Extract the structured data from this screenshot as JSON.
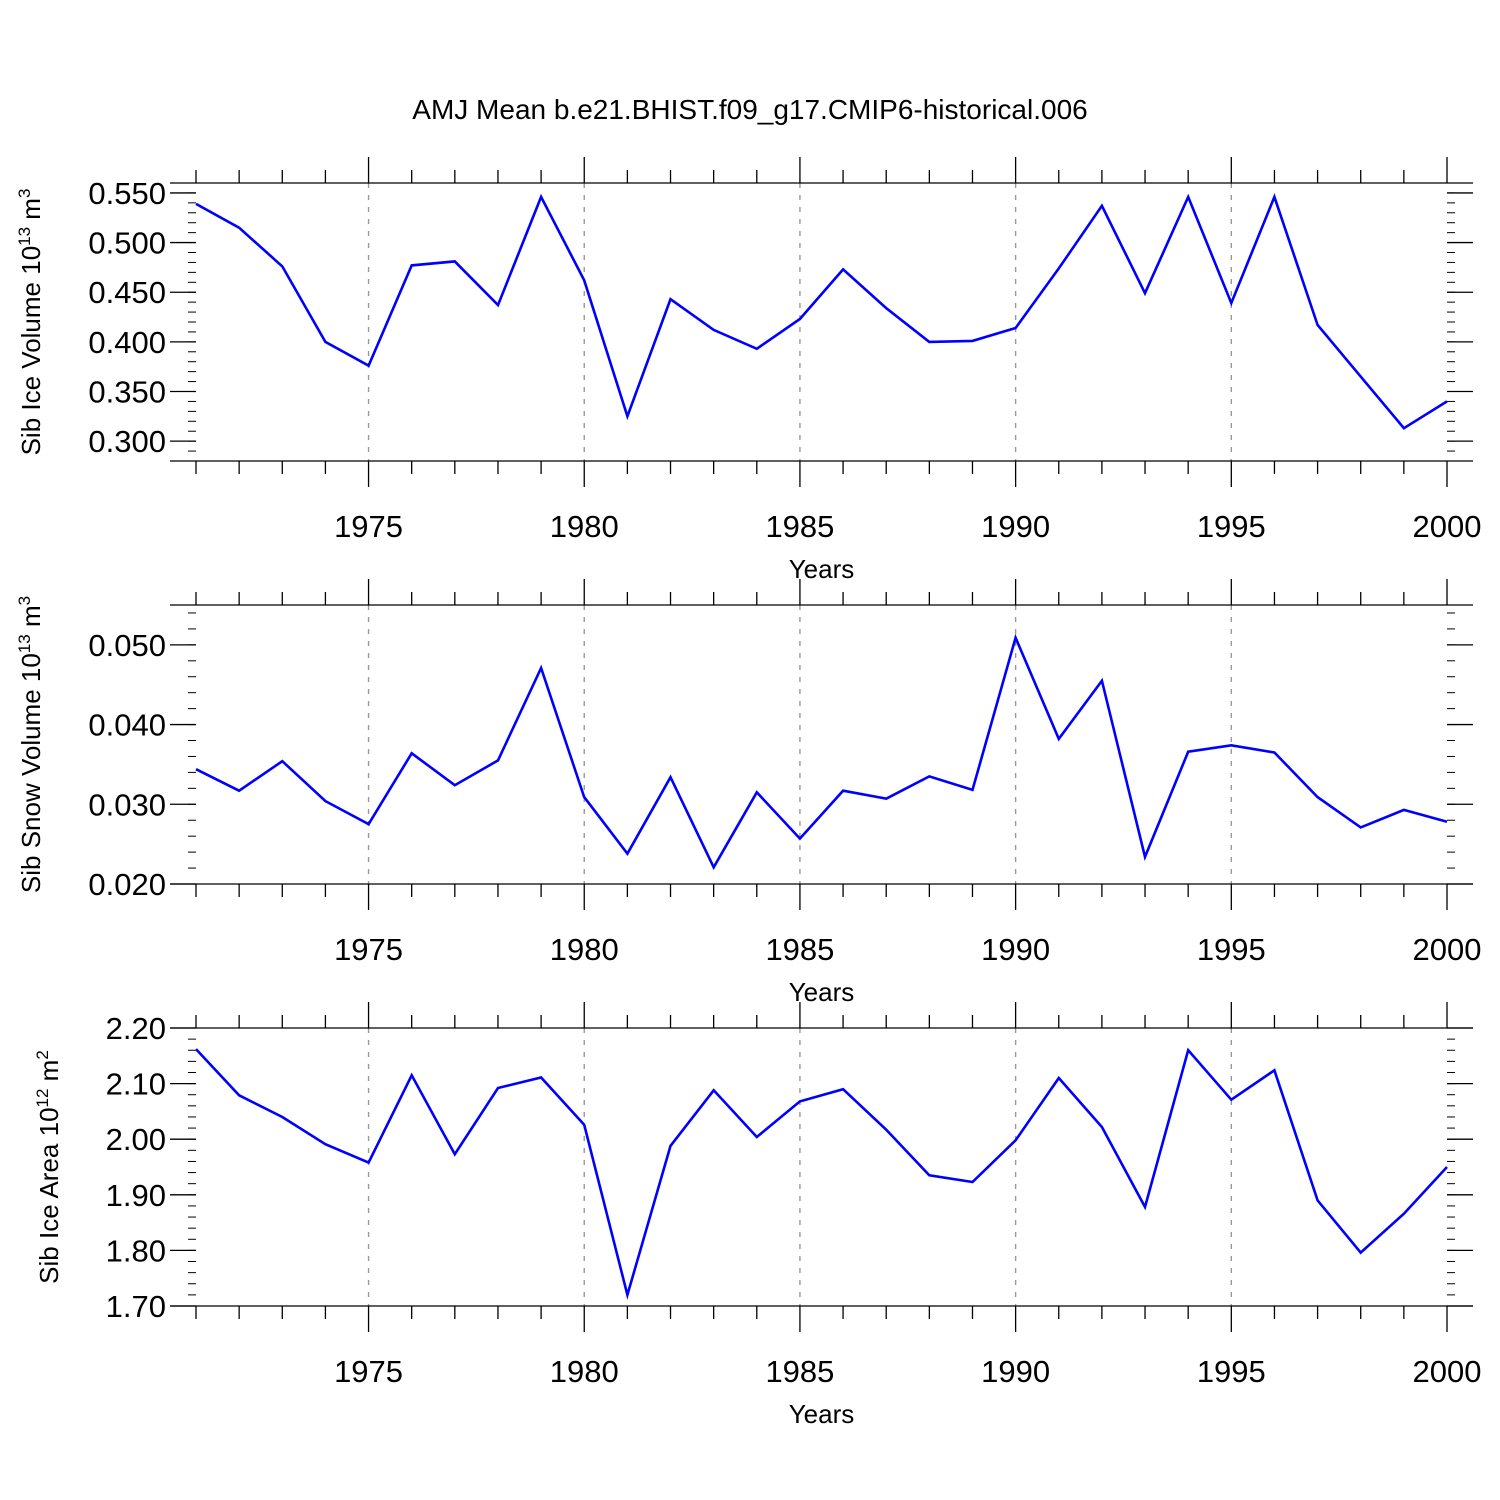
{
  "title": "AMJ Mean b.e21.BHIST.f09_g17.CMIP6-historical.006",
  "colors": {
    "line": "#0000ff",
    "axis": "#000000",
    "grid": "#999999"
  },
  "chart_data": [
    {
      "type": "line",
      "xlabel": "Years",
      "ylabel": {
        "prefix": "Sib Ice Volume 10",
        "exp": "13",
        "unit": " m",
        "unit_exp": "3"
      },
      "xlim": [
        1971,
        2000
      ],
      "ylim": [
        0.28,
        0.56
      ],
      "xticks": [
        1975,
        1980,
        1985,
        1990,
        1995,
        2000
      ],
      "yticks": [
        0.3,
        0.35,
        0.4,
        0.45,
        0.5,
        0.55
      ],
      "ytick_labels": [
        "0.300",
        "0.350",
        "0.400",
        "0.450",
        "0.500",
        "0.550"
      ],
      "x": [
        1971,
        1972,
        1973,
        1974,
        1975,
        1976,
        1977,
        1978,
        1979,
        1980,
        1981,
        1982,
        1983,
        1984,
        1985,
        1986,
        1987,
        1988,
        1989,
        1990,
        1991,
        1992,
        1993,
        1994,
        1995,
        1996,
        1997,
        1998,
        1999,
        2000
      ],
      "y": [
        0.539,
        0.515,
        0.476,
        0.4,
        0.376,
        0.477,
        0.481,
        0.437,
        0.546,
        0.462,
        0.325,
        0.443,
        0.412,
        0.393,
        0.423,
        0.473,
        0.434,
        0.4,
        0.401,
        0.414,
        0.474,
        0.537,
        0.449,
        0.546,
        0.439,
        0.546,
        0.417,
        0.365,
        0.313,
        0.34
      ]
    },
    {
      "type": "line",
      "xlabel": "Years",
      "ylabel": {
        "prefix": "Sib Snow Volume 10",
        "exp": "13",
        "unit": " m",
        "unit_exp": "3"
      },
      "xlim": [
        1971,
        2000
      ],
      "ylim": [
        0.02,
        0.055
      ],
      "xticks": [
        1975,
        1980,
        1985,
        1990,
        1995,
        2000
      ],
      "yticks": [
        0.02,
        0.03,
        0.04,
        0.05
      ],
      "ytick_labels": [
        "0.020",
        "0.030",
        "0.040",
        "0.050"
      ],
      "x": [
        1971,
        1972,
        1973,
        1974,
        1975,
        1976,
        1977,
        1978,
        1979,
        1980,
        1981,
        1982,
        1983,
        1984,
        1985,
        1986,
        1987,
        1988,
        1989,
        1990,
        1991,
        1992,
        1993,
        1994,
        1995,
        1996,
        1997,
        1998,
        1999,
        2000
      ],
      "y": [
        0.0344,
        0.0317,
        0.0354,
        0.0304,
        0.0275,
        0.0364,
        0.0324,
        0.0355,
        0.0471,
        0.0309,
        0.0238,
        0.0334,
        0.0221,
        0.0315,
        0.0257,
        0.0317,
        0.0307,
        0.0335,
        0.0318,
        0.0509,
        0.0382,
        0.0455,
        0.0234,
        0.0366,
        0.0374,
        0.0365,
        0.0309,
        0.0271,
        0.0293,
        0.0278
      ]
    },
    {
      "type": "line",
      "xlabel": "Years",
      "ylabel": {
        "prefix": "Sib Ice Area 10",
        "exp": "12",
        "unit": " m",
        "unit_exp": "2"
      },
      "xlim": [
        1971,
        2000
      ],
      "ylim": [
        1.7,
        2.2
      ],
      "xticks": [
        1975,
        1980,
        1985,
        1990,
        1995,
        2000
      ],
      "yticks": [
        1.7,
        1.8,
        1.9,
        2.0,
        2.1,
        2.2
      ],
      "ytick_labels": [
        "1.70",
        "1.80",
        "1.90",
        "2.00",
        "2.10",
        "2.20"
      ],
      "x": [
        1971,
        1972,
        1973,
        1974,
        1975,
        1976,
        1977,
        1978,
        1979,
        1980,
        1981,
        1982,
        1983,
        1984,
        1985,
        1986,
        1987,
        1988,
        1989,
        1990,
        1991,
        1992,
        1993,
        1994,
        1995,
        1996,
        1997,
        1998,
        1999,
        2000
      ],
      "y": [
        2.162,
        2.079,
        2.04,
        1.991,
        1.958,
        2.115,
        1.973,
        2.092,
        2.111,
        2.026,
        1.72,
        1.988,
        2.088,
        2.004,
        2.068,
        2.09,
        2.017,
        1.935,
        1.923,
        1.998,
        2.11,
        2.022,
        1.878,
        2.16,
        2.071,
        2.124,
        1.89,
        1.796,
        1.866,
        1.95
      ]
    }
  ]
}
